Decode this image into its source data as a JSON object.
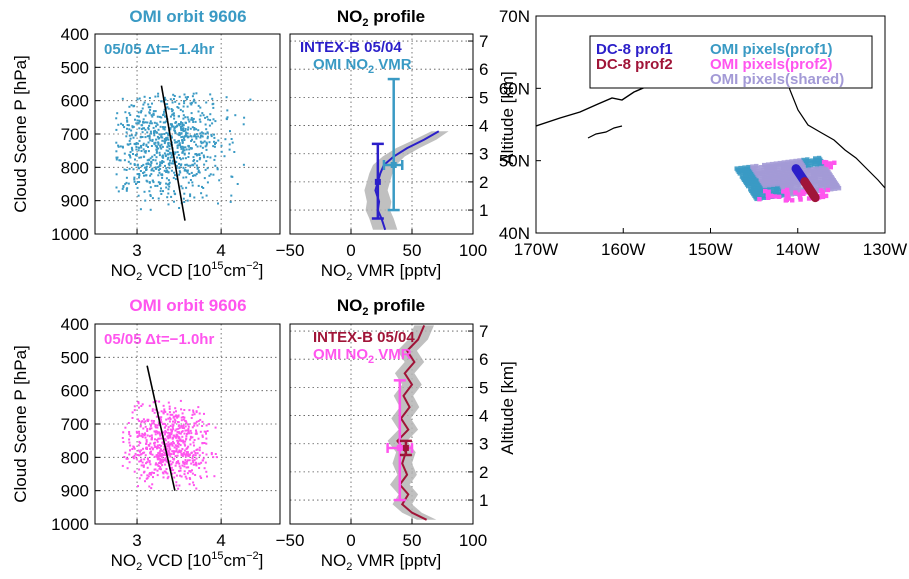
{
  "chart_data": [
    {
      "type": "scatter",
      "title": "OMI orbit 9606",
      "title_color": "#3a9ac4",
      "annotation": "05/05 Δt=−1.4hr",
      "xlabel": "NO2 VCD [10^15 cm^-2]",
      "ylabel": "Cloud Scene P [hPa]",
      "xticks": [
        "3",
        "4"
      ],
      "yticks": [
        "400",
        "500",
        "600",
        "700",
        "800",
        "900",
        "1000"
      ],
      "xlim": [
        2.5,
        4.7
      ],
      "ylim": [
        1000,
        400
      ],
      "y_reversed": true,
      "grid": true,
      "point_color": "#3a9ac4",
      "cloud": {
        "n": 900,
        "x_mean": 3.35,
        "x_sd": 0.33,
        "y_mean": 735,
        "y_sd": 85,
        "x_min": 2.75,
        "x_max": 4.35,
        "y_min": 565,
        "y_max": 935,
        "seed": 11
      },
      "fit_line": {
        "x": [
          3.29,
          3.57
        ],
        "y": [
          555,
          960
        ]
      }
    },
    {
      "type": "line",
      "title": "NO2 profile",
      "xlabel": "NO2 VMR [pptv]",
      "ylabel_right": "Altitude [km]",
      "xticks": [
        "−50",
        "0",
        "50",
        "100"
      ],
      "yticks_right": [
        "1",
        "2",
        "3",
        "4",
        "5",
        "6",
        "7"
      ],
      "xlim": [
        -50,
        100
      ],
      "ylim_km": [
        0.15,
        7.25
      ],
      "grid": true,
      "legend": [
        {
          "label": "INTEX-B 05/04",
          "color": "#2b1fc9"
        },
        {
          "label": "OMI NO2 VMR",
          "color": "#3a9ac4"
        }
      ],
      "series": [
        {
          "name": "INTEX-B 05/04",
          "color": "#2b1fc9",
          "x": [
            28,
            25,
            22,
            23,
            20,
            22,
            24,
            27,
            35,
            46,
            60,
            72
          ],
          "y": [
            0.3,
            0.7,
            1.0,
            1.3,
            1.7,
            2.0,
            2.3,
            2.6,
            2.9,
            3.2,
            3.5,
            3.8
          ]
        }
      ],
      "shade": {
        "x_lo": [
          18,
          15,
          12,
          13,
          11,
          13,
          15,
          18,
          26,
          37,
          52,
          66
        ],
        "x_hi": [
          38,
          35,
          32,
          33,
          30,
          32,
          34,
          37,
          44,
          56,
          70,
          80
        ]
      },
      "error_bars": [
        {
          "color": "#2b1fc9",
          "x": 22,
          "y": 2.0,
          "ylo": 0.7,
          "yhi": 3.35
        },
        {
          "color": "#3a9ac4",
          "x": 35,
          "y": 2.6,
          "ylo": 1.0,
          "yhi": 5.65,
          "xlo": 27,
          "xhi": 42
        }
      ]
    },
    {
      "type": "map",
      "xticks": [
        "170W",
        "160W",
        "150W",
        "140W",
        "130W"
      ],
      "yticks": [
        "40N",
        "50N",
        "60N",
        "70N"
      ],
      "lon_range": [
        -170,
        -130
      ],
      "lat_range": [
        40,
        70
      ],
      "legend": [
        {
          "label": "DC-8 prof1",
          "color": "#2b1fc9"
        },
        {
          "label": "OMI pixels(prof1)",
          "color": "#3a9ac4"
        },
        {
          "label": "DC-8 prof2",
          "color": "#a01538"
        },
        {
          "label": "OMI pixels(prof2)",
          "color": "#ff55ee"
        },
        {
          "label": "OMI pixels(shared)",
          "color": "#a39ad6"
        }
      ],
      "track1": {
        "lon": [
          -140.2,
          -139.2
        ],
        "lat": [
          48.9,
          47.1
        ]
      },
      "track2": {
        "lon": [
          -139.2,
          -138.0
        ],
        "lat": [
          47.1,
          44.9
        ]
      }
    },
    {
      "type": "scatter",
      "title": "OMI orbit 9606",
      "title_color": "#ff55ee",
      "annotation": "05/05 Δt=−1.0hr",
      "xlabel": "NO2 VCD [10^15 cm^-2]",
      "ylabel": "Cloud Scene P [hPa]",
      "xticks": [
        "3",
        "4"
      ],
      "yticks": [
        "400",
        "500",
        "600",
        "700",
        "800",
        "900",
        "1000"
      ],
      "xlim": [
        2.5,
        4.7
      ],
      "ylim": [
        1000,
        400
      ],
      "y_reversed": true,
      "grid": true,
      "point_color": "#ff55ee",
      "cloud": {
        "n": 750,
        "x_mean": 3.35,
        "x_sd": 0.26,
        "y_mean": 760,
        "y_sd": 65,
        "x_min": 2.82,
        "x_max": 3.95,
        "y_min": 630,
        "y_max": 895,
        "seed": 23
      },
      "fit_line": {
        "x": [
          3.12,
          3.45
        ],
        "y": [
          525,
          900
        ]
      }
    },
    {
      "type": "line",
      "title": "NO2 profile",
      "xlabel": "NO2 VMR [pptv]",
      "ylabel_right": "Altitude [km]",
      "xticks": [
        "−50",
        "0",
        "50",
        "100"
      ],
      "yticks_right": [
        "1",
        "2",
        "3",
        "4",
        "5",
        "6",
        "7"
      ],
      "xlim": [
        -50,
        100
      ],
      "ylim_km": [
        0.15,
        7.25
      ],
      "grid": true,
      "legend": [
        {
          "label": "INTEX-B 05/04",
          "color": "#a01538"
        },
        {
          "label": "OMI NO2 VMR",
          "color": "#ff55ee"
        }
      ],
      "series": [
        {
          "name": "INTEX-B 05/04",
          "color": "#a01538",
          "x": [
            62,
            50,
            42,
            47,
            40,
            46,
            42,
            45,
            38,
            47,
            41,
            48,
            43,
            50,
            44,
            52,
            46,
            55,
            60
          ],
          "y": [
            0.3,
            0.55,
            0.85,
            1.2,
            1.55,
            1.9,
            2.3,
            2.7,
            3.1,
            3.5,
            3.9,
            4.3,
            4.7,
            5.1,
            5.5,
            5.9,
            6.3,
            6.7,
            7.2
          ]
        }
      ],
      "shade": {
        "x_lo": [
          54,
          42,
          34,
          39,
          32,
          38,
          34,
          37,
          30,
          39,
          33,
          40,
          35,
          42,
          36,
          44,
          38,
          47,
          52
        ],
        "x_hi": [
          70,
          58,
          50,
          55,
          48,
          54,
          50,
          53,
          46,
          55,
          49,
          56,
          51,
          58,
          52,
          60,
          54,
          63,
          68
        ]
      },
      "error_bars": [
        {
          "color": "#ff55ee",
          "x": 40,
          "y": 2.85,
          "ylo": 1.0,
          "yhi": 5.25,
          "xlo": 30,
          "xhi": 50
        },
        {
          "color": "#a01538",
          "x": 45,
          "y": 2.85,
          "ylo": 2.6,
          "yhi": 3.1
        }
      ]
    }
  ]
}
